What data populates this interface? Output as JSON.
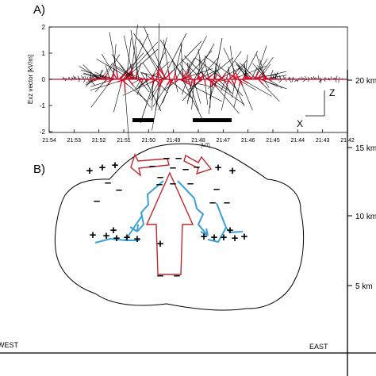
{
  "panel_a": {
    "label": "A)",
    "ylabel": "Exz vector  [kV/m]",
    "yticks": [
      "2",
      "1",
      "0",
      "-1",
      "-2"
    ],
    "xticks": [
      "21:54",
      "21:53",
      "21:52",
      "21:51",
      "21:50",
      "21:49",
      "21:48",
      "21:47",
      "21:46",
      "21:45",
      "21:44",
      "21:43",
      "21:42"
    ],
    "time_unit": "[UT]",
    "axis_z": "Z",
    "axis_x": "X",
    "colors": {
      "vectors": "#d0102a",
      "lines": "#000000"
    }
  },
  "panel_b": {
    "label": "B)",
    "west": "WEST",
    "east": "EAST",
    "altitudes": [
      "20 km",
      "15 km",
      "10 km",
      "5 km"
    ],
    "plus": "+",
    "minus": "–",
    "colors": {
      "updraft": "#c0282d",
      "discharge": "#3aa0d8"
    }
  }
}
